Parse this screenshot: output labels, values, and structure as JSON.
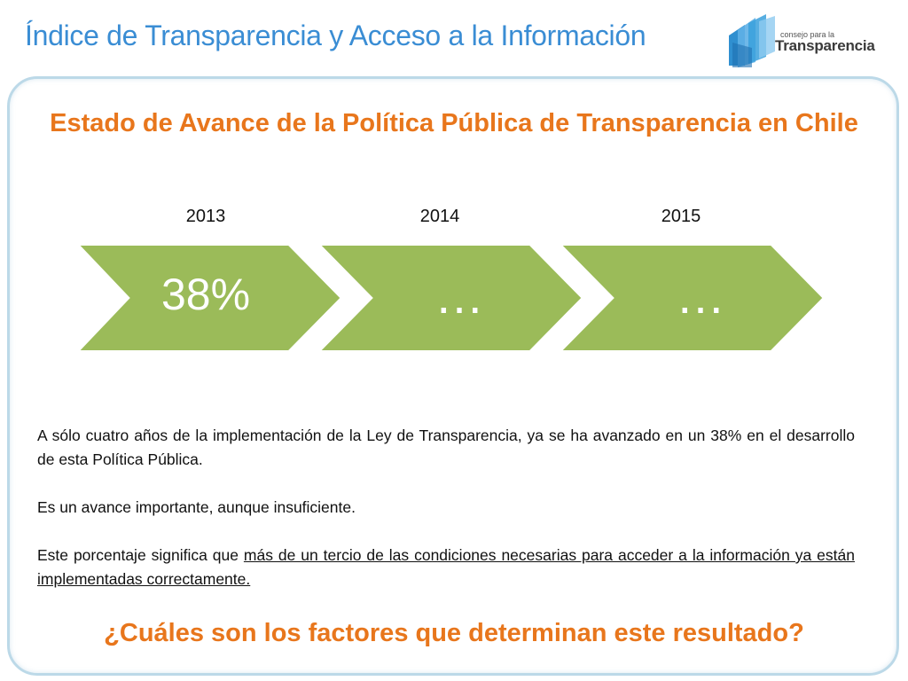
{
  "header": {
    "title": "Índice de Transparencia y Acceso a la Información",
    "logo": {
      "line1": "consejo para la",
      "line2": "Transparencia"
    }
  },
  "slide": {
    "title": "Estado de Avance de la Política Pública de Transparencia en Chile",
    "progress": [
      {
        "year": "2013",
        "value": "38%"
      },
      {
        "year": "2014",
        "value": "…"
      },
      {
        "year": "2015",
        "value": "…"
      }
    ],
    "paragraph1": "A sólo cuatro años de la implementación de la Ley de Transparencia, ya se ha avanzado en un 38% en el desarrollo de esta Política Pública.",
    "paragraph2": "Es un avance importante, aunque insuficiente.",
    "paragraph3_prefix": "Este porcentaje significa que ",
    "paragraph3_link": "más de un tercio de las condiciones necesarias para acceder a la información ya están implementadas correctamente.",
    "question": "¿Cuáles son los factores que determinan este resultado?"
  },
  "colors": {
    "header_blue": "#3a8dd4",
    "accent_orange": "#e8761c",
    "chevron_green": "#9bbb59",
    "frame_border": "#bcd9e8"
  }
}
